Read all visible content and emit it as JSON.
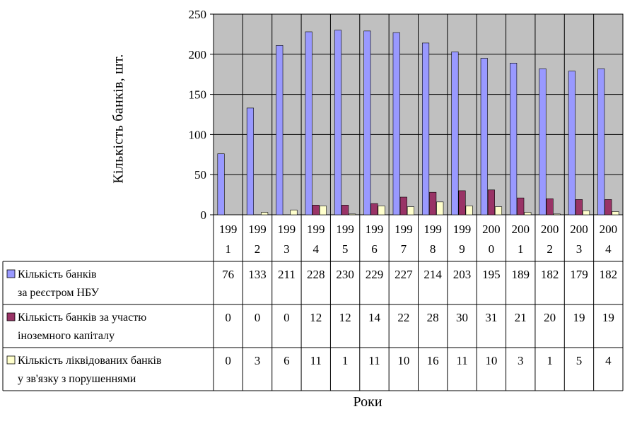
{
  "chart_data": {
    "type": "bar",
    "ylabel": "Кількість банків, шт.",
    "xlabel": "Роки",
    "ylim": [
      0,
      250
    ],
    "yticks": [
      0,
      50,
      100,
      150,
      200,
      250
    ],
    "grid": true,
    "categories": [
      [
        "199",
        "1"
      ],
      [
        "199",
        "2"
      ],
      [
        "199",
        "3"
      ],
      [
        "199",
        "4"
      ],
      [
        "199",
        "5"
      ],
      [
        "199",
        "6"
      ],
      [
        "199",
        "7"
      ],
      [
        "199",
        "8"
      ],
      [
        "199",
        "9"
      ],
      [
        "200",
        "0"
      ],
      [
        "200",
        "1"
      ],
      [
        "200",
        "2"
      ],
      [
        "200",
        "3"
      ],
      [
        "200",
        "4"
      ]
    ],
    "series": [
      {
        "name_lines": [
          "Кількість банків",
          "за реєстром НБУ"
        ],
        "color": "#9999ff",
        "values": [
          76,
          133,
          211,
          228,
          230,
          229,
          227,
          214,
          203,
          195,
          189,
          182,
          179,
          182
        ]
      },
      {
        "name_lines": [
          "Кількість банків за участю",
          "іноземного капіталу"
        ],
        "color": "#993366",
        "values": [
          0,
          0,
          0,
          12,
          12,
          14,
          22,
          28,
          30,
          31,
          21,
          20,
          19,
          19
        ]
      },
      {
        "name_lines": [
          "Кількість ліквідованих банків",
          "у зв'язку з порушеннями"
        ],
        "color": "#ffffcc",
        "values": [
          0,
          3,
          6,
          11,
          1,
          11,
          10,
          16,
          11,
          10,
          3,
          1,
          5,
          4
        ]
      }
    ],
    "colors": {
      "plot_bg": "#c0c0c0",
      "grid": "#000000"
    }
  }
}
